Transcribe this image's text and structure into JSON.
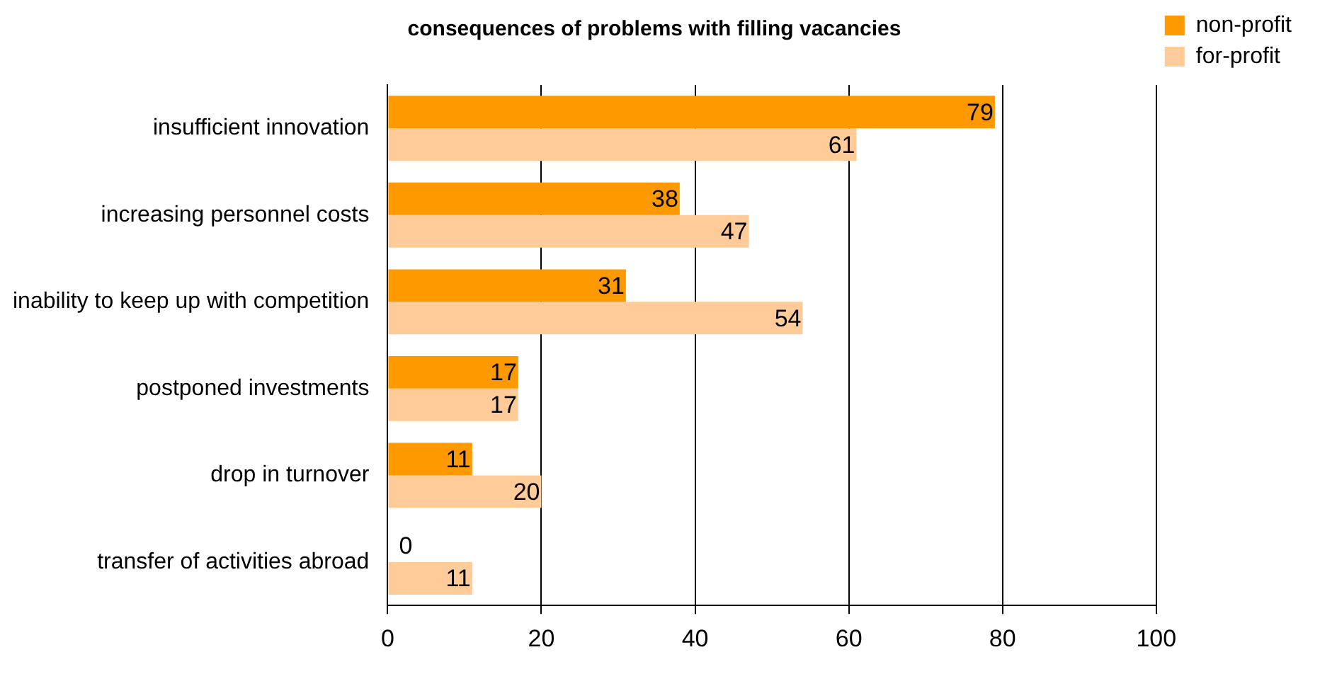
{
  "chart_data": {
    "type": "bar",
    "orientation": "horizontal",
    "title": "consequences of problems with filling vacancies",
    "categories": [
      "insufficient innovation",
      "increasing personnel costs",
      "inability to keep up with competition",
      "postponed investments",
      "drop in turnover",
      "transfer of activities abroad"
    ],
    "series": [
      {
        "name": "non-profit",
        "color": "#ff9900",
        "values": [
          79,
          38,
          31,
          17,
          11,
          0
        ]
      },
      {
        "name": "for-profit",
        "color": "#ffcc99",
        "values": [
          61,
          47,
          54,
          17,
          20,
          11
        ]
      }
    ],
    "xlim": [
      0,
      100
    ],
    "xticks": [
      0,
      20,
      40,
      60,
      80,
      100
    ],
    "grid": "x",
    "legend": "top right",
    "data_labels": true
  }
}
